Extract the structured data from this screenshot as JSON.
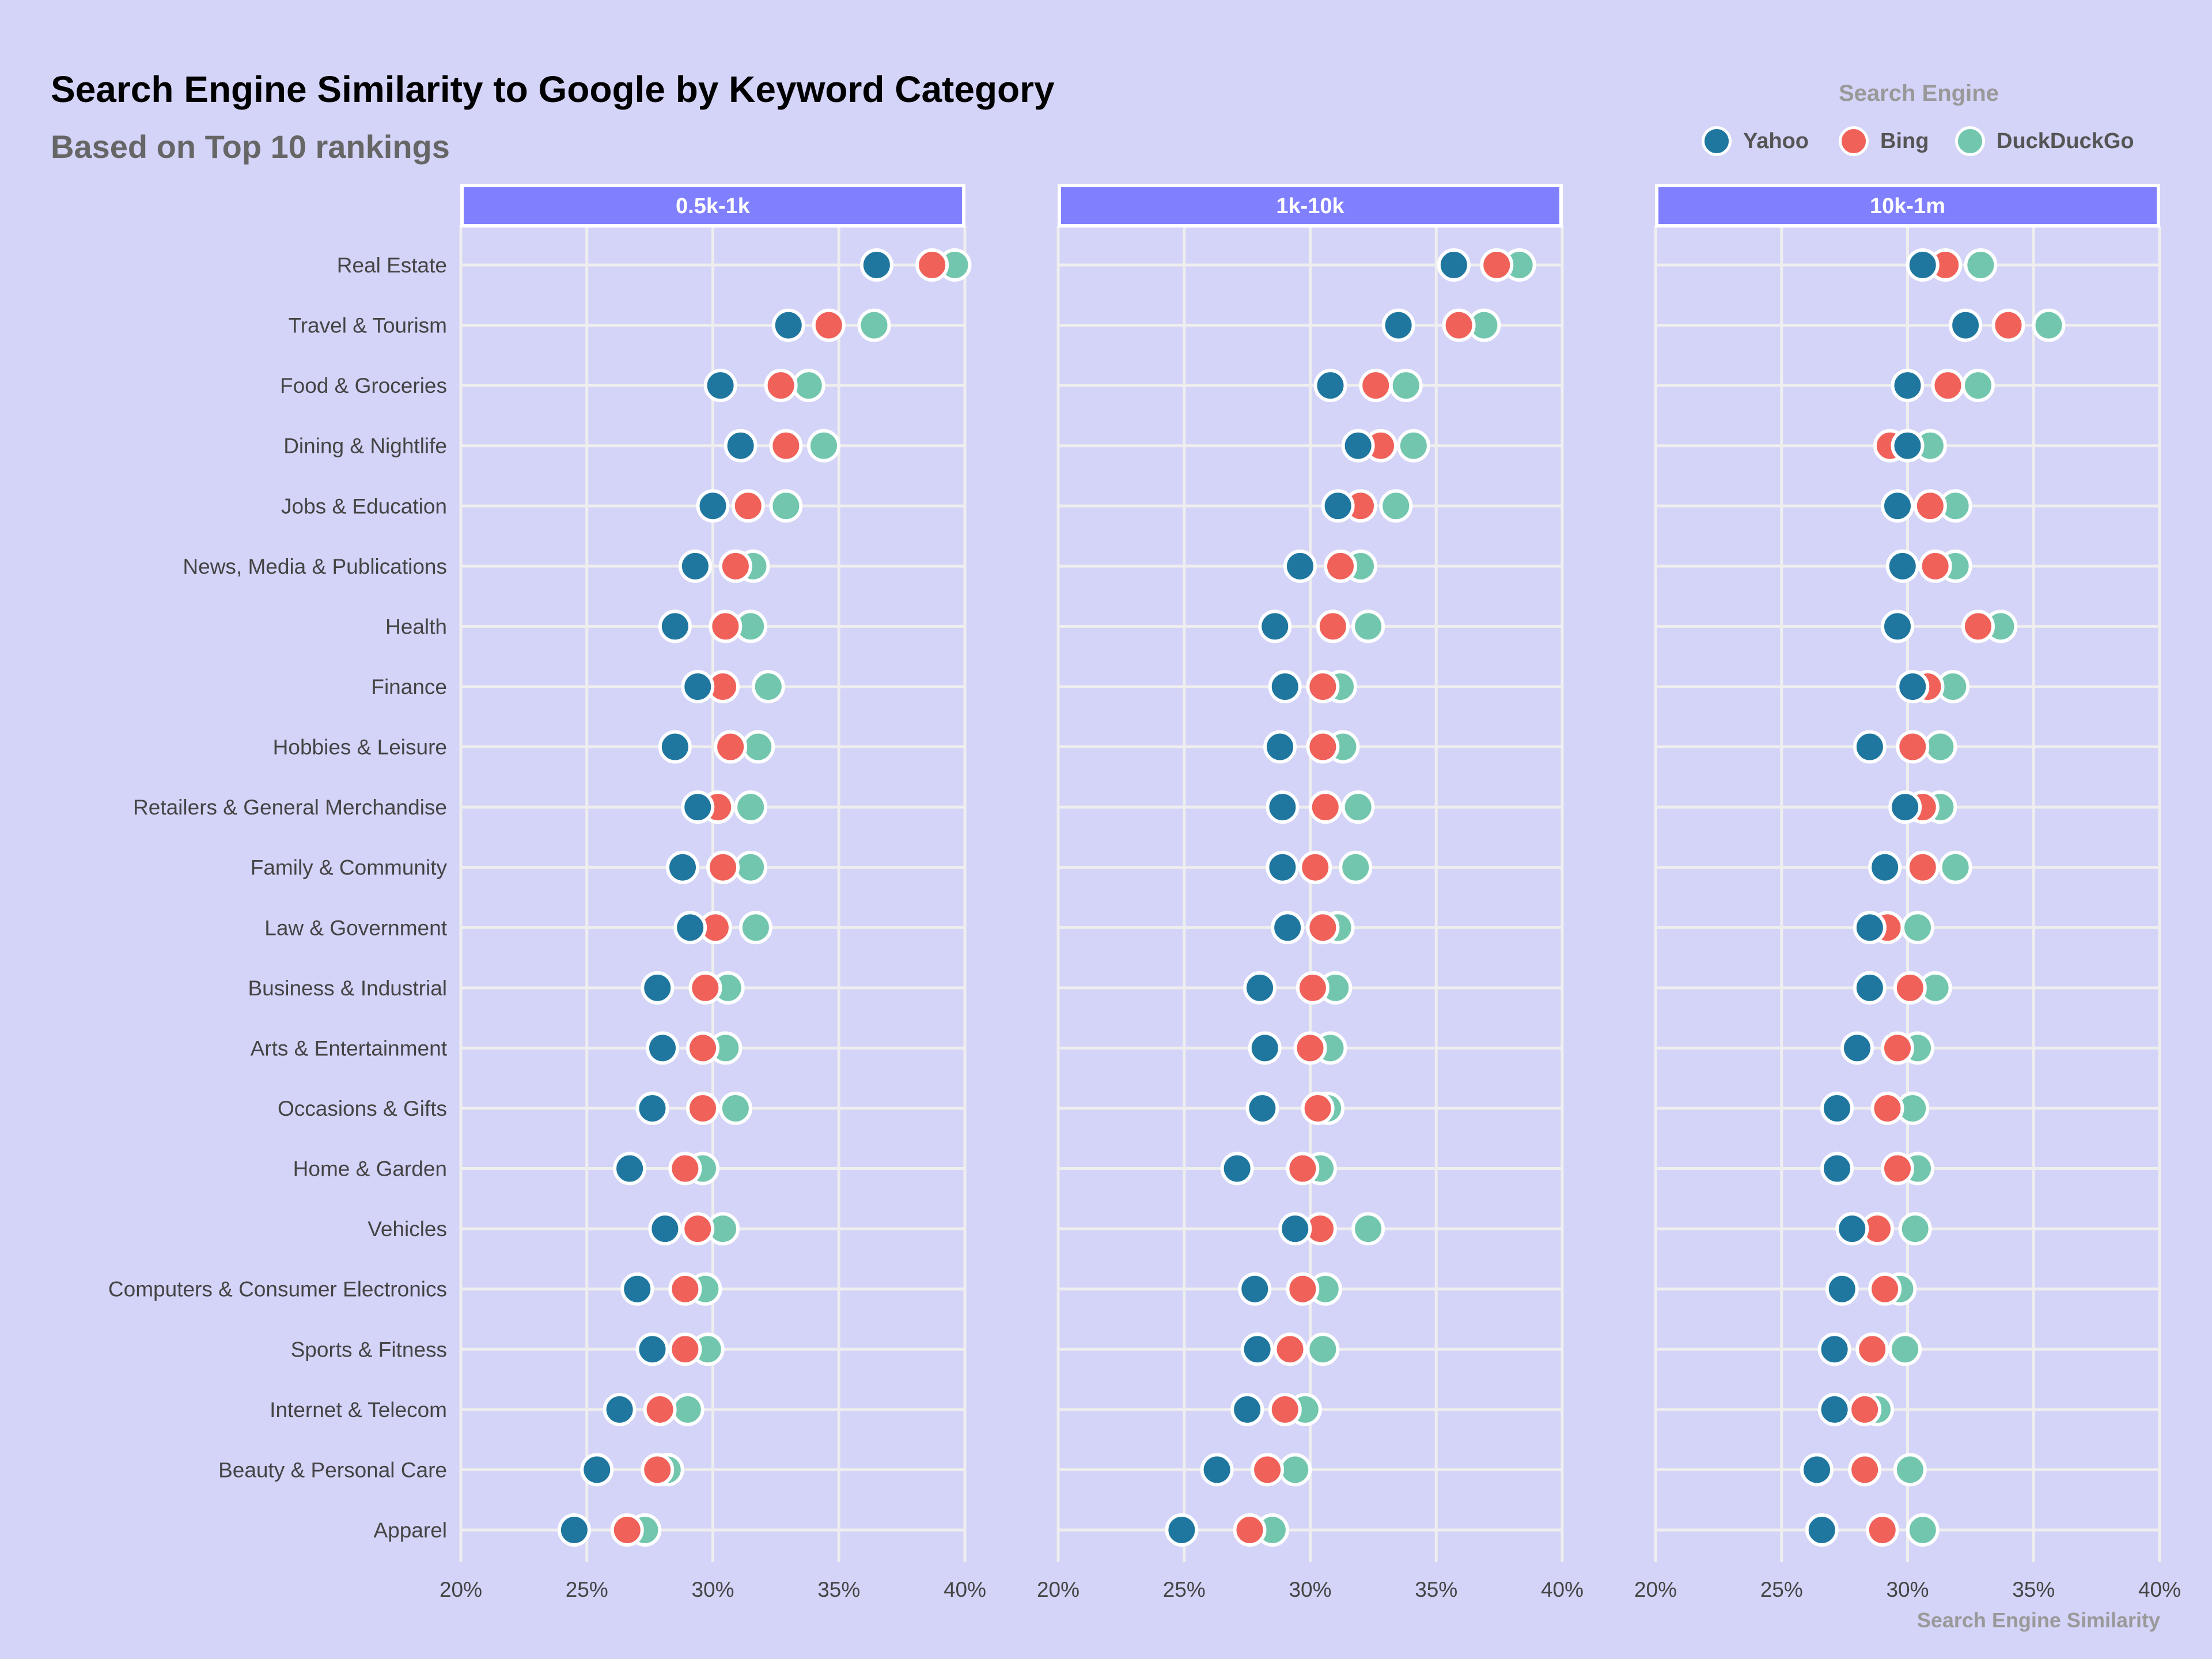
{
  "chart_data": {
    "type": "scatter",
    "title": "Search Engine Similarity to Google by Keyword Category",
    "subtitle": "Based on Top 10 rankings",
    "xlabel": "Search Engine Similarity",
    "ylabel": "",
    "xlim": [
      20,
      40
    ],
    "x_ticks": [
      "20%",
      "25%",
      "30%",
      "35%",
      "40%"
    ],
    "x_tick_values": [
      20,
      25,
      30,
      35,
      40
    ],
    "grid": true,
    "legend": {
      "title": "Search Engine",
      "placement": "top-right",
      "entries": [
        "Yahoo",
        "Bing",
        "DuckDuckGo"
      ]
    },
    "colors": {
      "Yahoo": "#1f77a0",
      "Bing": "#f0615a",
      "DuckDuckGo": "#72c6ae"
    },
    "categories": [
      "Real Estate",
      "Travel & Tourism",
      "Food & Groceries",
      "Dining & Nightlife",
      "Jobs & Education",
      "News, Media & Publications",
      "Health",
      "Finance",
      "Hobbies & Leisure",
      "Retailers & General Merchandise",
      "Family & Community",
      "Law & Government",
      "Business & Industrial",
      "Arts & Entertainment",
      "Occasions & Gifts",
      "Home & Garden",
      "Vehicles",
      "Computers & Consumer Electronics",
      "Sports & Fitness",
      "Internet & Telecom",
      "Beauty & Personal Care",
      "Apparel"
    ],
    "panels": [
      {
        "name": "0.5k-1k",
        "series": [
          {
            "name": "Yahoo",
            "values": [
              36.5,
              33.0,
              30.3,
              31.1,
              30.0,
              29.3,
              28.5,
              29.4,
              28.5,
              29.4,
              28.8,
              29.1,
              27.8,
              28.0,
              27.6,
              26.7,
              28.1,
              27.0,
              27.6,
              26.3,
              25.4,
              24.5
            ]
          },
          {
            "name": "Bing",
            "values": [
              38.7,
              34.6,
              32.7,
              32.9,
              31.4,
              30.9,
              30.5,
              30.4,
              30.7,
              30.2,
              30.4,
              30.1,
              29.7,
              29.6,
              29.6,
              28.9,
              29.4,
              28.9,
              28.9,
              27.9,
              27.8,
              26.6
            ]
          },
          {
            "name": "DuckDuckGo",
            "values": [
              39.6,
              36.4,
              33.8,
              34.4,
              32.9,
              31.6,
              31.5,
              32.2,
              31.8,
              31.5,
              31.5,
              31.7,
              30.6,
              30.5,
              30.9,
              29.6,
              30.4,
              29.7,
              29.8,
              29.0,
              28.2,
              27.3
            ]
          }
        ]
      },
      {
        "name": "1k-10k",
        "series": [
          {
            "name": "Yahoo",
            "values": [
              35.7,
              33.5,
              30.8,
              31.9,
              31.1,
              29.6,
              28.6,
              29.0,
              28.8,
              28.9,
              28.9,
              29.1,
              28.0,
              28.2,
              28.1,
              27.1,
              29.4,
              27.8,
              27.9,
              27.5,
              26.3,
              24.9
            ]
          },
          {
            "name": "Bing",
            "values": [
              37.4,
              35.9,
              32.6,
              32.8,
              32.0,
              31.2,
              30.9,
              30.5,
              30.5,
              30.6,
              30.2,
              30.5,
              30.1,
              30.0,
              30.3,
              29.7,
              30.4,
              29.7,
              29.2,
              29.0,
              28.3,
              27.6
            ]
          },
          {
            "name": "DuckDuckGo",
            "values": [
              38.3,
              36.9,
              33.8,
              34.1,
              33.4,
              32.0,
              32.3,
              31.2,
              31.3,
              31.9,
              31.8,
              31.1,
              31.0,
              30.8,
              30.7,
              30.4,
              32.3,
              30.6,
              30.5,
              29.8,
              29.4,
              28.5
            ]
          }
        ]
      },
      {
        "name": "10k-1m",
        "series": [
          {
            "name": "Yahoo",
            "values": [
              30.6,
              32.3,
              30.0,
              30.0,
              29.6,
              29.8,
              29.6,
              30.2,
              28.5,
              29.9,
              29.1,
              28.5,
              28.5,
              28.0,
              27.2,
              27.2,
              27.8,
              27.4,
              27.1,
              27.1,
              26.4,
              26.6
            ]
          },
          {
            "name": "Bing",
            "values": [
              31.5,
              34.0,
              31.6,
              29.3,
              30.9,
              31.1,
              32.8,
              30.8,
              30.2,
              30.6,
              30.6,
              29.2,
              30.1,
              29.6,
              29.2,
              29.6,
              28.8,
              29.1,
              28.6,
              28.3,
              28.3,
              29.0
            ]
          },
          {
            "name": "DuckDuckGo",
            "values": [
              32.9,
              35.6,
              32.8,
              30.9,
              31.9,
              31.9,
              33.7,
              31.8,
              31.3,
              31.3,
              31.9,
              30.4,
              31.1,
              30.4,
              30.2,
              30.4,
              30.3,
              29.7,
              29.9,
              28.8,
              30.1,
              30.6
            ]
          }
        ]
      }
    ]
  }
}
